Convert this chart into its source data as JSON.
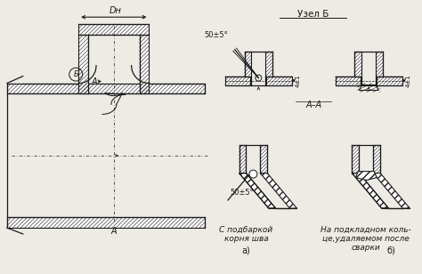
{
  "bg_color": "#eeebe5",
  "line_color": "#1a1a1a",
  "title_uzl": "Узел Б",
  "label_Dn": "Dн",
  "label_A_upper": "А",
  "label_A_lower": "А",
  "label_B": "Б",
  "label_AA": "А–А",
  "label_angle1": "50±5°",
  "label_angle2": "50±5°",
  "label_dim": "4±1",
  "label_caption_a1": "С подбаркой",
  "label_caption_a2": "корня шва",
  "label_a": "а)",
  "label_caption_b1": "На подкладном коль-",
  "label_caption_b2": "це,удаляемом после",
  "label_caption_b3": "сварки",
  "label_b": "б)",
  "figsize": [
    4.74,
    3.08
  ],
  "dpi": 100
}
